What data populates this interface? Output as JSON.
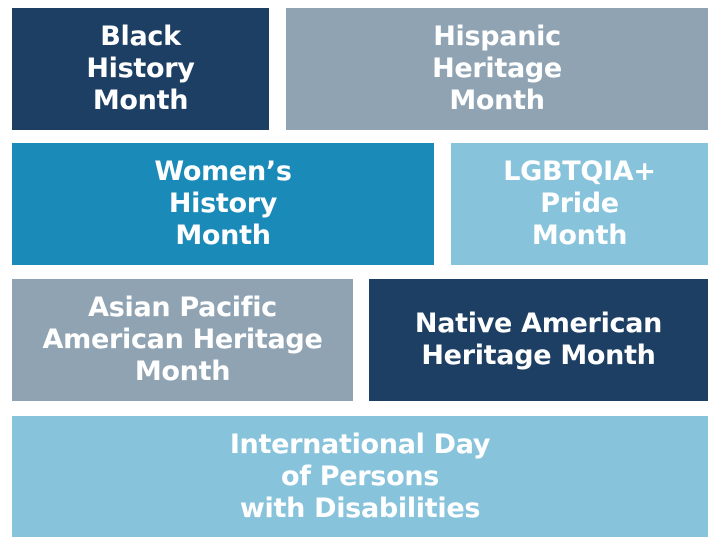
{
  "tiles": [
    {
      "lines": [
        "Black",
        "History",
        "Month"
      ]
    },
    {
      "lines": [
        "Hispanic",
        "Heritage",
        "Month"
      ]
    },
    {
      "lines": [
        "Women’s",
        "History",
        "Month"
      ]
    },
    {
      "lines": [
        "LGBTQIA+",
        "Pride",
        "Month"
      ]
    },
    {
      "lines": [
        "Asian Pacific",
        "American Heritage",
        "Month"
      ]
    },
    {
      "lines": [
        "Native American",
        "Heritage Month"
      ]
    },
    {
      "lines": [
        "International Day",
        "of Persons",
        "with Disabilities"
      ]
    }
  ]
}
